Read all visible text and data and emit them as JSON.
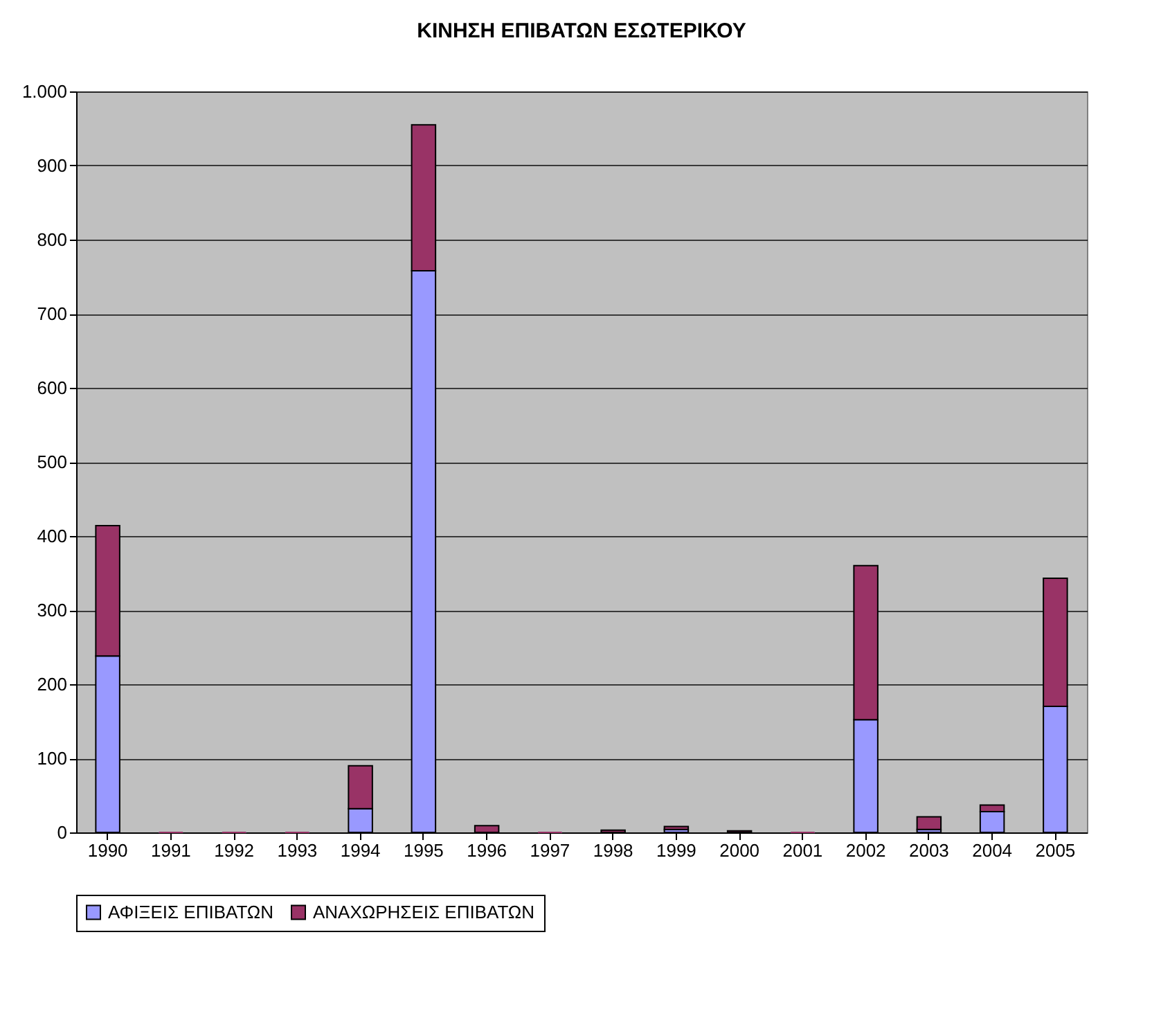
{
  "chart_data": {
    "type": "bar",
    "title": "ΚΙΝΗΣΗ ΕΠΙΒΑΤΩΝ ΕΣΩΤΕΡΙΚΟΥ",
    "stacked": true,
    "categories": [
      "1990",
      "1991",
      "1992",
      "1993",
      "1994",
      "1995",
      "1996",
      "1997",
      "1998",
      "1999",
      "2000",
      "2001",
      "2002",
      "2003",
      "2004",
      "2005"
    ],
    "series": [
      {
        "name": "ΑΦΙΞΕΙΣ ΕΠΙΒΑΤΩΝ",
        "color": "#9999ff",
        "values": [
          238,
          0,
          0,
          0,
          32,
          758,
          0,
          0,
          0,
          4,
          0,
          0,
          152,
          4,
          28,
          170
        ]
      },
      {
        "name": "ΑΝΑΧΩΡΗΣΕΙΣ ΕΠΙΒΑΤΩΝ",
        "color": "#993366",
        "values": [
          176,
          0,
          0,
          0,
          58,
          197,
          9,
          0,
          3,
          4,
          2,
          0,
          208,
          17,
          9,
          173
        ]
      }
    ],
    "ylim": [
      0,
      1000
    ],
    "yticks": [
      0,
      100,
      200,
      300,
      400,
      500,
      600,
      700,
      800,
      900,
      {
        "value": 1000,
        "label": "1.000"
      }
    ],
    "grid": "y",
    "legend": "bottom"
  }
}
